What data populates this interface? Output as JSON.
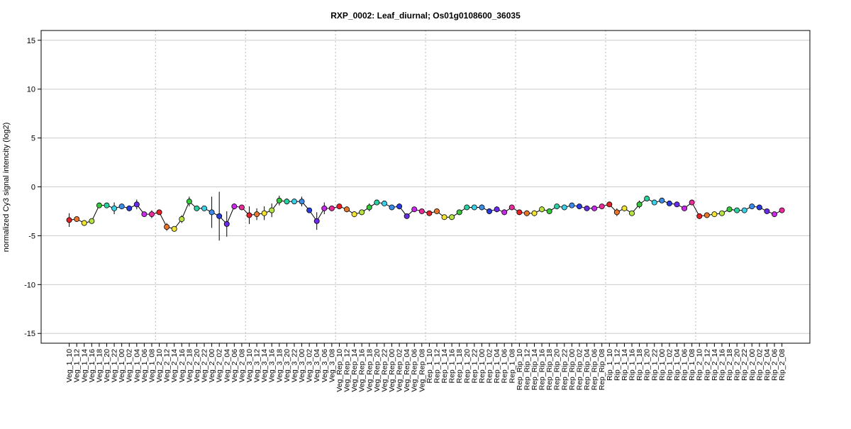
{
  "chart_data": {
    "type": "line",
    "title": "RXP_0002: Leaf_diurnal; Os01g0108600_36035",
    "ylabel": "normalized Cy3 signal intencity (log2)",
    "xlabel": "",
    "ylim": [
      -16,
      16
    ],
    "yticks": [
      -15,
      -10,
      -5,
      0,
      5,
      10,
      15
    ],
    "grid": true,
    "legend": "none",
    "line_color": "#000000",
    "grid_color": "#cccccc",
    "separator_color": "#bbbbbb",
    "separator_after": [
      "Veg_1_08",
      "Veg_2_08",
      "Veg_3_08",
      "Veg_Rep_08",
      "Rep_1_08",
      "Rep_Rip_08",
      "Rip_1_08"
    ],
    "categories": [
      "Veg_1_10",
      "Veg_1_12",
      "Veg_1_14",
      "Veg_1_16",
      "Veg_1_18",
      "Veg_1_20",
      "Veg_1_22",
      "Veg_1_00",
      "Veg_1_02",
      "Veg_1_04",
      "Veg_1_06",
      "Veg_1_08",
      "Veg_2_10",
      "Veg_2_12",
      "Veg_2_14",
      "Veg_2_16",
      "Veg_2_18",
      "Veg_2_20",
      "Veg_2_22",
      "Veg_2_00",
      "Veg_2_02",
      "Veg_2_04",
      "Veg_2_06",
      "Veg_2_08",
      "Veg_3_10",
      "Veg_3_12",
      "Veg_3_14",
      "Veg_3_16",
      "Veg_3_18",
      "Veg_3_20",
      "Veg_3_22",
      "Veg_3_00",
      "Veg_3_02",
      "Veg_3_04",
      "Veg_3_06",
      "Veg_3_08",
      "Veg_Rep_10",
      "Veg_Rep_12",
      "Veg_Rep_14",
      "Veg_Rep_16",
      "Veg_Rep_18",
      "Veg_Rep_20",
      "Veg_Rep_22",
      "Veg_Rep_00",
      "Veg_Rep_02",
      "Veg_Rep_04",
      "Veg_Rep_06",
      "Veg_Rep_08",
      "Rep_1_10",
      "Rep_1_12",
      "Rep_1_14",
      "Rep_1_16",
      "Rep_1_18",
      "Rep_1_20",
      "Rep_1_22",
      "Rep_1_00",
      "Rep_1_02",
      "Rep_1_04",
      "Rep_1_06",
      "Rep_1_08",
      "Rep_Rip_10",
      "Rep_Rip_12",
      "Rep_Rip_14",
      "Rep_Rip_16",
      "Rep_Rip_18",
      "Rep_Rip_20",
      "Rep_Rip_22",
      "Rep_Rip_00",
      "Rep_Rip_02",
      "Rep_Rip_04",
      "Rep_Rip_06",
      "Rep_Rip_08",
      "Rip_1_10",
      "Rip_1_12",
      "Rip_1_14",
      "Rip_1_16",
      "Rip_1_18",
      "Rip_1_20",
      "Rip_1_22",
      "Rip_1_00",
      "Rip_1_02",
      "Rip_1_04",
      "Rip_1_06",
      "Rip_1_08",
      "Rip_2_10",
      "Rip_2_12",
      "Rip_2_14",
      "Rip_2_16",
      "Rip_2_18",
      "Rip_2_20",
      "Rip_2_22",
      "Rip_2_00",
      "Rip_2_02",
      "Rip_2_04",
      "Rip_2_06",
      "Rip_2_08"
    ],
    "values": [
      -3.4,
      -3.3,
      -3.7,
      -3.5,
      -1.9,
      -1.9,
      -2.2,
      -2.0,
      -2.2,
      -1.8,
      -2.8,
      -2.8,
      -2.6,
      -4.1,
      -4.3,
      -3.3,
      -1.5,
      -2.2,
      -2.2,
      -2.6,
      -3.0,
      -3.8,
      -2.0,
      -2.1,
      -2.9,
      -2.8,
      -2.7,
      -2.4,
      -1.4,
      -1.5,
      -1.5,
      -1.5,
      -2.4,
      -3.5,
      -2.2,
      -2.2,
      -2.0,
      -2.3,
      -2.8,
      -2.6,
      -2.1,
      -1.6,
      -1.7,
      -2.1,
      -2.0,
      -3.0,
      -2.3,
      -2.5,
      -2.7,
      -2.5,
      -3.1,
      -3.1,
      -2.6,
      -2.1,
      -2.1,
      -2.1,
      -2.5,
      -2.3,
      -2.6,
      -2.1,
      -2.6,
      -2.7,
      -2.7,
      -2.3,
      -2.5,
      -2.0,
      -2.1,
      -1.9,
      -2.0,
      -2.2,
      -2.2,
      -2.0,
      -1.8,
      -2.6,
      -2.2,
      -2.7,
      -1.8,
      -1.2,
      -1.6,
      -1.4,
      -1.7,
      -1.8,
      -2.2,
      -1.6,
      -3.0,
      -2.9,
      -2.8,
      -2.7,
      -2.3,
      -2.4,
      -2.4,
      -2.0,
      -2.1,
      -2.5,
      -2.8,
      -2.4
    ],
    "errors": [
      0.7,
      0.2,
      0.3,
      0.2,
      0.2,
      0.2,
      0.6,
      0.2,
      0.3,
      0.5,
      0.2,
      0.4,
      0.2,
      0.4,
      0.2,
      0.4,
      0.5,
      0.2,
      0.2,
      1.6,
      2.5,
      1.3,
      0.3,
      0.2,
      0.9,
      0.6,
      0.7,
      0.7,
      0.5,
      0.3,
      0.2,
      0.5,
      0.2,
      0.9,
      0.6,
      0.2,
      0.2,
      0.3,
      0.3,
      0.2,
      0.4,
      0.2,
      0.2,
      0.2,
      0.3,
      0.2,
      0.2,
      0.2,
      0.2,
      0.2,
      0.2,
      0.2,
      0.2,
      0.2,
      0.2,
      0.3,
      0.3,
      0.3,
      0.3,
      0.2,
      0.2,
      0.3,
      0.3,
      0.3,
      0.2,
      0.2,
      0.2,
      0.2,
      0.2,
      0.2,
      0.2,
      0.2,
      0.2,
      0.4,
      0.3,
      0.2,
      0.4,
      0.2,
      0.2,
      0.2,
      0.2,
      0.2,
      0.2,
      0.2,
      0.2,
      0.2,
      0.2,
      0.2,
      0.2,
      0.2,
      0.2,
      0.2,
      0.2,
      0.2,
      0.2,
      0.2
    ],
    "point_colors": [
      "#e8202a",
      "#e8762a",
      "#f2e332",
      "#b6e340",
      "#34c83a",
      "#2ad0a0",
      "#3ad0e8",
      "#3a8ce8",
      "#2a3ae0",
      "#6a2ae8",
      "#c82ae8",
      "#e82a9a",
      "#e8202a",
      "#e8762a",
      "#f2e332",
      "#b6e340",
      "#34c83a",
      "#2ad0a0",
      "#3ad0e8",
      "#3a8ce8",
      "#2a3ae0",
      "#6a2ae8",
      "#c82ae8",
      "#e82a9a",
      "#e8202a",
      "#e8762a",
      "#f2e332",
      "#b6e340",
      "#34c83a",
      "#2ad0a0",
      "#3ad0e8",
      "#3a8ce8",
      "#2a3ae0",
      "#6a2ae8",
      "#c82ae8",
      "#e82a9a",
      "#e8202a",
      "#e8762a",
      "#f2e332",
      "#b6e340",
      "#34c83a",
      "#2ad0a0",
      "#3ad0e8",
      "#3a8ce8",
      "#2a3ae0",
      "#6a2ae8",
      "#c82ae8",
      "#e82a9a",
      "#e8202a",
      "#e8762a",
      "#f2e332",
      "#b6e340",
      "#34c83a",
      "#2ad0a0",
      "#3ad0e8",
      "#3a8ce8",
      "#2a3ae0",
      "#6a2ae8",
      "#c82ae8",
      "#e82a9a",
      "#e8202a",
      "#e8762a",
      "#f2e332",
      "#b6e340",
      "#34c83a",
      "#2ad0a0",
      "#3ad0e8",
      "#3a8ce8",
      "#2a3ae0",
      "#6a2ae8",
      "#c82ae8",
      "#e82a9a",
      "#e8202a",
      "#e8762a",
      "#f2e332",
      "#b6e340",
      "#34c83a",
      "#2ad0a0",
      "#3ad0e8",
      "#3a8ce8",
      "#2a3ae0",
      "#6a2ae8",
      "#c82ae8",
      "#e82a9a",
      "#e8202a",
      "#e8762a",
      "#f2e332",
      "#b6e340",
      "#34c83a",
      "#2ad0a0",
      "#3ad0e8",
      "#3a8ce8",
      "#2a3ae0",
      "#6a2ae8",
      "#c82ae8",
      "#e82a9a"
    ]
  }
}
